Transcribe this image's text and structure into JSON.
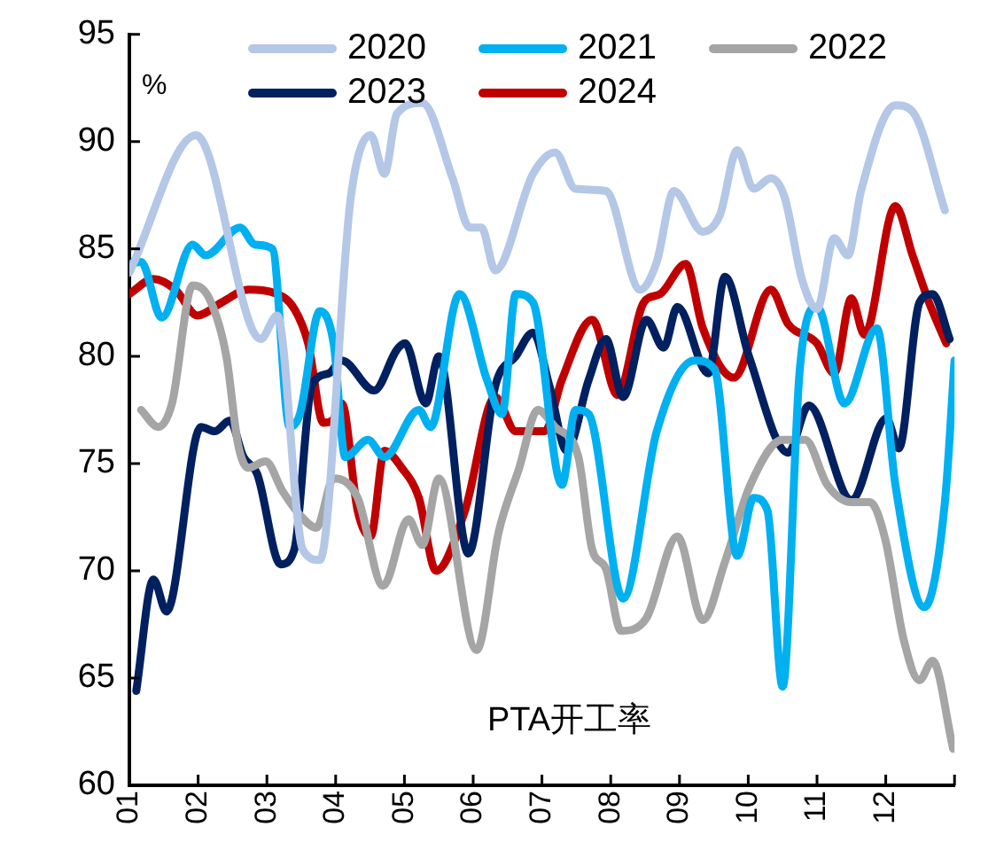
{
  "chart_data": {
    "type": "line",
    "title": "PTA开工率",
    "ylabel": "%",
    "xlim": [
      1,
      13
    ],
    "ylim": [
      60,
      95
    ],
    "xticks": [
      {
        "value": 1,
        "label": "01"
      },
      {
        "value": 2,
        "label": "02"
      },
      {
        "value": 3,
        "label": "03"
      },
      {
        "value": 4,
        "label": "04"
      },
      {
        "value": 5,
        "label": "05"
      },
      {
        "value": 6,
        "label": "06"
      },
      {
        "value": 7,
        "label": "07"
      },
      {
        "value": 8,
        "label": "08"
      },
      {
        "value": 9,
        "label": "09"
      },
      {
        "value": 10,
        "label": "10"
      },
      {
        "value": 11,
        "label": "11"
      },
      {
        "value": 12,
        "label": "12"
      },
      {
        "value": 13,
        "label": null
      }
    ],
    "yticks": [
      60,
      65,
      70,
      75,
      80,
      85,
      90,
      95
    ],
    "grid": false,
    "legend": "top",
    "marker": "none",
    "line_style": "solid",
    "series": [
      {
        "name": "2020",
        "color": "#b4c7e7",
        "x": [
          1.0,
          1.97,
          2.91,
          3.15,
          3.52,
          3.77,
          4.22,
          4.51,
          4.71,
          4.89,
          5.26,
          5.7,
          5.95,
          6.12,
          6.32,
          6.87,
          7.19,
          7.49,
          7.93,
          8.43,
          8.67,
          8.92,
          9.34,
          9.59,
          9.84,
          10.08,
          10.33,
          10.53,
          10.78,
          11.0,
          11.25,
          11.45,
          11.64,
          12.14,
          12.39,
          12.86
        ],
        "values": [
          83.9,
          90.3,
          80.8,
          81.9,
          71,
          70.5,
          87.4,
          90.3,
          88.5,
          91.3,
          91.8,
          88.3,
          86,
          86,
          84,
          88.5,
          89.5,
          87.8,
          87.7,
          83.1,
          84.4,
          87.7,
          85.8,
          86.6,
          89.6,
          87.8,
          88.3,
          87.4,
          83.6,
          82.2,
          85.5,
          84.7,
          87.7,
          91.7,
          91.4,
          86.8
        ]
      },
      {
        "name": "2021",
        "color": "#00b0f0",
        "x": [
          1.0,
          1.17,
          1.47,
          1.92,
          2.11,
          2.61,
          2.83,
          3.08,
          3.33,
          3.48,
          3.77,
          3.97,
          4.14,
          4.47,
          4.71,
          5.21,
          5.38,
          5.8,
          6.2,
          6.42,
          6.62,
          6.87,
          7.29,
          7.49,
          7.68,
          8.18,
          8.67,
          9.22,
          9.51,
          9.84,
          10.08,
          10.28,
          10.5,
          10.75,
          11.0,
          11.4,
          11.87,
          12.14,
          12.56,
          12.86,
          13.0
        ],
        "values": [
          84.3,
          84.4,
          81.8,
          85.2,
          84.7,
          86.0,
          85.2,
          85,
          76.7,
          77.3,
          82.1,
          80.6,
          75.3,
          76.1,
          75.3,
          77.5,
          76.7,
          82.9,
          78.9,
          77.3,
          82.9,
          82.5,
          74,
          77.5,
          77.3,
          68.7,
          76.5,
          79.8,
          79.4,
          70.7,
          73.4,
          72.8,
          64.6,
          79.4,
          82.3,
          77.8,
          81.3,
          74,
          68.3,
          73.2,
          79.8
        ]
      },
      {
        "name": "2022",
        "color": "#a5a5a5",
        "x": [
          1.17,
          1.42,
          1.62,
          1.92,
          2.16,
          2.41,
          2.58,
          2.73,
          2.98,
          3.23,
          3.48,
          3.72,
          3.97,
          4.32,
          4.69,
          5.06,
          5.26,
          5.5,
          6.05,
          6.37,
          6.67,
          6.94,
          7.19,
          7.53,
          7.73,
          7.93,
          8.15,
          8.52,
          8.97,
          9.34,
          9.66,
          10.03,
          10.5,
          10.83,
          11.15,
          11.5,
          11.77,
          11.99,
          12.26,
          12.49,
          12.68,
          12.98
        ],
        "values": [
          77.5,
          76.7,
          77.8,
          83.3,
          82.7,
          80,
          75.9,
          74.8,
          75.1,
          73.7,
          72.6,
          72,
          74.3,
          73.4,
          69.3,
          72.4,
          71.2,
          74.3,
          66.3,
          71.8,
          74.8,
          77.5,
          76.7,
          75.3,
          71,
          70.1,
          67.2,
          67.8,
          71.6,
          67.7,
          70.4,
          74,
          76.1,
          76.1,
          74,
          73.2,
          73.2,
          71.5,
          66.8,
          64.9,
          65.8,
          61.7
        ]
      },
      {
        "name": "2023",
        "color": "#002060",
        "x": [
          1.1,
          1.35,
          1.54,
          2.04,
          2.24,
          2.46,
          2.66,
          2.86,
          3.2,
          3.4,
          3.65,
          3.9,
          4.09,
          4.56,
          4.89,
          5.01,
          5.31,
          5.5,
          5.93,
          6.32,
          6.62,
          6.87,
          7.11,
          7.36,
          7.68,
          7.93,
          8.18,
          8.52,
          8.77,
          8.97,
          9.42,
          9.66,
          10.01,
          10.58,
          10.88,
          11.5,
          12.01,
          12.19,
          12.49,
          12.68,
          12.93
        ],
        "values": [
          64.4,
          69.6,
          68.1,
          76.7,
          76.5,
          77,
          75.3,
          74.5,
          70.3,
          71,
          78.6,
          79.2,
          79.8,
          78.4,
          80.3,
          80.6,
          77.8,
          80,
          70.8,
          78.6,
          80,
          81.1,
          78.6,
          75.6,
          78.9,
          80.8,
          78.1,
          81.7,
          80.4,
          82.3,
          79.2,
          83.7,
          80,
          75.5,
          77.7,
          73.3,
          77.1,
          75.7,
          82.5,
          82.9,
          80.8
        ]
      },
      {
        "name": "2024",
        "color": "#c00000",
        "x": [
          1.0,
          1.35,
          1.67,
          1.99,
          2.34,
          2.73,
          3.15,
          3.4,
          3.6,
          3.82,
          3.95,
          4.09,
          4.32,
          4.51,
          4.71,
          4.96,
          5.21,
          5.46,
          5.88,
          6.32,
          6.62,
          7.04,
          7.29,
          7.73,
          8.1,
          8.48,
          8.72,
          9.09,
          9.34,
          9.79,
          10.33,
          10.58,
          11.0,
          11.25,
          11.5,
          11.69,
          12.14,
          12.39,
          12.63,
          12.88
        ],
        "values": [
          82.9,
          83.6,
          83.1,
          81.9,
          82.5,
          83.1,
          82.9,
          82.2,
          80.6,
          76.9,
          77,
          77.8,
          72.8,
          71.6,
          75.6,
          74.8,
          73.4,
          70,
          72.8,
          78.1,
          76.5,
          76.5,
          78.9,
          81.7,
          78.2,
          82.5,
          82.9,
          84.3,
          81.3,
          79,
          83.1,
          81.5,
          80.6,
          79.2,
          82.7,
          81,
          87,
          84.7,
          82.5,
          80.6
        ]
      }
    ]
  }
}
